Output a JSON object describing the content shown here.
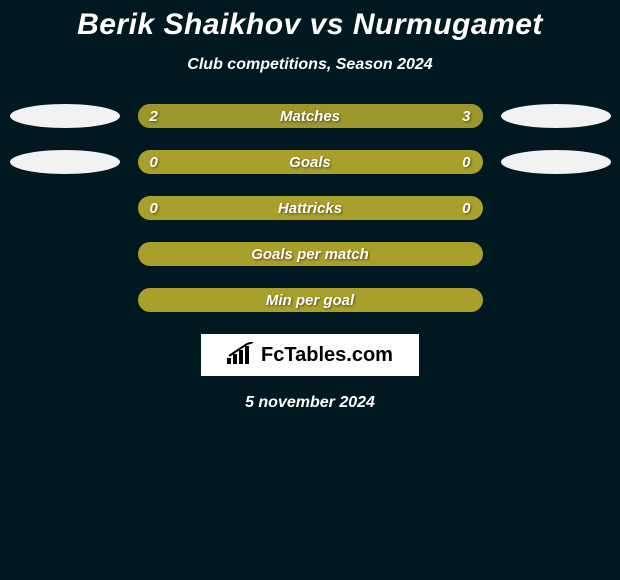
{
  "header": {
    "player1": "Berik Shaikhov",
    "vs": "vs",
    "player2": "Nurmugamet",
    "subtitle": "Club competitions, Season 2024"
  },
  "colors": {
    "player1_accent": "#f2f2f2",
    "player2_accent": "#f2f2f2",
    "bar_track": "#a8a02a",
    "bar_fill_left": "#9d962a",
    "bar_fill_right": "#9d962a",
    "background": "#001920",
    "text": "#ffffff"
  },
  "stats": [
    {
      "label": "Matches",
      "left_value": "2",
      "right_value": "3",
      "left_pct": 40,
      "right_pct": 60,
      "show_ellipses": true
    },
    {
      "label": "Goals",
      "left_value": "0",
      "right_value": "0",
      "left_pct": 0,
      "right_pct": 0,
      "show_ellipses": true
    },
    {
      "label": "Hattricks",
      "left_value": "0",
      "right_value": "0",
      "left_pct": 0,
      "right_pct": 0,
      "show_ellipses": false
    },
    {
      "label": "Goals per match",
      "left_value": "",
      "right_value": "",
      "left_pct": 0,
      "right_pct": 0,
      "show_ellipses": false
    },
    {
      "label": "Min per goal",
      "left_value": "",
      "right_value": "",
      "left_pct": 0,
      "right_pct": 0,
      "show_ellipses": false
    }
  ],
  "footer": {
    "logo_text": "FcTables.com",
    "date": "5 november 2024"
  },
  "typography": {
    "title_fontsize": 30,
    "subtitle_fontsize": 16,
    "bar_label_fontsize": 15,
    "date_fontsize": 16
  }
}
